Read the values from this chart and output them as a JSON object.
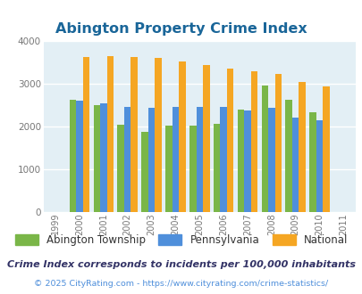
{
  "title": "Abington Property Crime Index",
  "all_years": [
    1999,
    2000,
    2001,
    2002,
    2003,
    2004,
    2005,
    2006,
    2007,
    2008,
    2009,
    2010,
    2011
  ],
  "bar_years": [
    2000,
    2001,
    2002,
    2003,
    2004,
    2005,
    2006,
    2007,
    2008,
    2009,
    2010
  ],
  "abington": [
    2630,
    2500,
    2040,
    1870,
    2020,
    2020,
    2070,
    2390,
    2960,
    2630,
    2330
  ],
  "pennsylvania": [
    2600,
    2550,
    2460,
    2440,
    2450,
    2450,
    2460,
    2380,
    2440,
    2210,
    2150
  ],
  "national": [
    3620,
    3650,
    3620,
    3600,
    3520,
    3440,
    3360,
    3290,
    3230,
    3040,
    2940
  ],
  "abington_color": "#7ab648",
  "pennsylvania_color": "#4f8fdb",
  "national_color": "#f5a623",
  "bg_color": "#e3eff5",
  "ylim": [
    0,
    4000
  ],
  "yticks": [
    0,
    1000,
    2000,
    3000,
    4000
  ],
  "legend_labels": [
    "Abington Township",
    "Pennsylvania",
    "National"
  ],
  "footnote1": "Crime Index corresponds to incidents per 100,000 inhabitants",
  "footnote2": "© 2025 CityRating.com - https://www.cityrating.com/crime-statistics/",
  "title_color": "#1a6699",
  "footnote1_color": "#333366",
  "footnote2_color": "#4f8fdb",
  "bar_width": 0.28
}
